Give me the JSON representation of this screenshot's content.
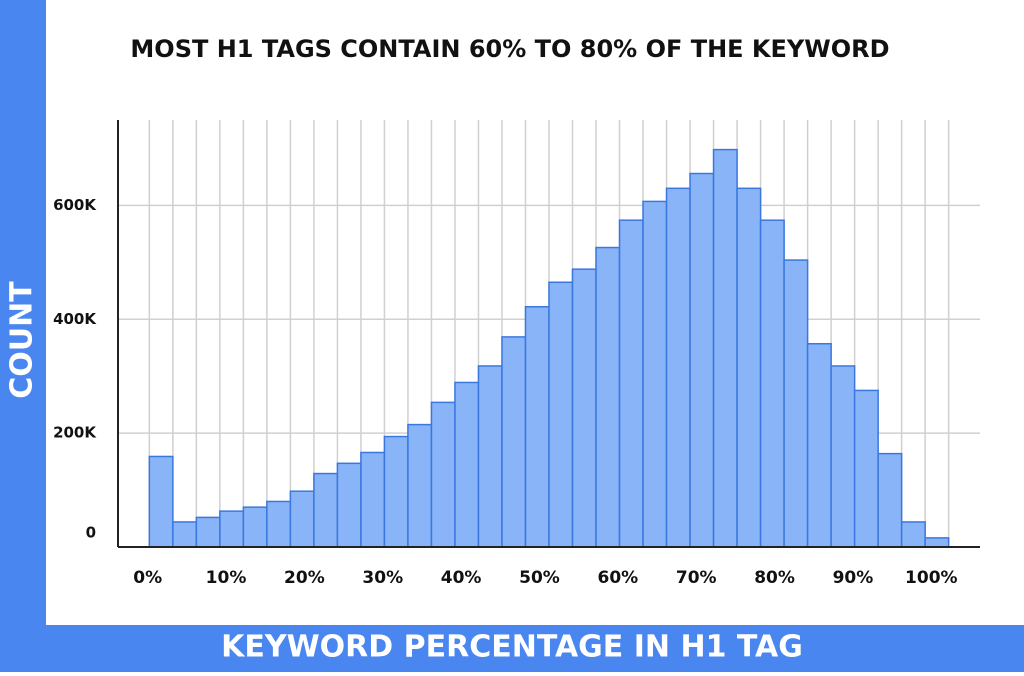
{
  "chart_data": {
    "type": "histogram",
    "title": "MOST H1 TAGS CONTAIN 60% TO 80% OF THE KEYWORD",
    "y_label": "COUNT",
    "x_label": "KEYWORD PERCENTAGE IN H1 TAG",
    "bins": [
      2,
      5,
      8,
      11,
      14,
      17,
      20,
      23,
      26,
      29,
      32,
      35,
      38,
      41,
      44,
      47,
      50,
      53,
      56,
      59,
      62,
      65,
      68,
      71,
      74,
      77,
      80,
      83,
      86,
      89,
      92,
      95,
      98,
      101,
      104
    ],
    "values": [
      159000,
      44000,
      52000,
      63000,
      70000,
      80000,
      98000,
      129000,
      147000,
      166000,
      194000,
      215000,
      254000,
      289000,
      318000,
      369000,
      422000,
      465000,
      488000,
      526000,
      574000,
      607000,
      630000,
      656000,
      698000,
      630000,
      574000,
      504000,
      357000,
      318000,
      275000,
      164000,
      44000,
      16000
    ],
    "color": "#8ab4f8",
    "edge_color": "#3a78e0",
    "xlim": [
      -2,
      108
    ],
    "ylim": [
      0,
      750000
    ],
    "xticks": [
      {
        "value": 0,
        "label": "0%"
      },
      {
        "value": 10,
        "label": "10%"
      },
      {
        "value": 20,
        "label": "20%"
      },
      {
        "value": 30,
        "label": "30%"
      },
      {
        "value": 40,
        "label": "40%"
      },
      {
        "value": 50,
        "label": "50%"
      },
      {
        "value": 60,
        "label": "60%"
      },
      {
        "value": 70,
        "label": "70%"
      },
      {
        "value": 80,
        "label": "80%"
      },
      {
        "value": 90,
        "label": "90%"
      },
      {
        "value": 100,
        "label": "100%"
      }
    ],
    "yticks": [
      0,
      {
        "value": 200000,
        "label": "200K"
      },
      {
        "value": 400000,
        "label": "400K"
      },
      {
        "value": 600000,
        "label": "600K"
      }
    ],
    "grid": true
  }
}
